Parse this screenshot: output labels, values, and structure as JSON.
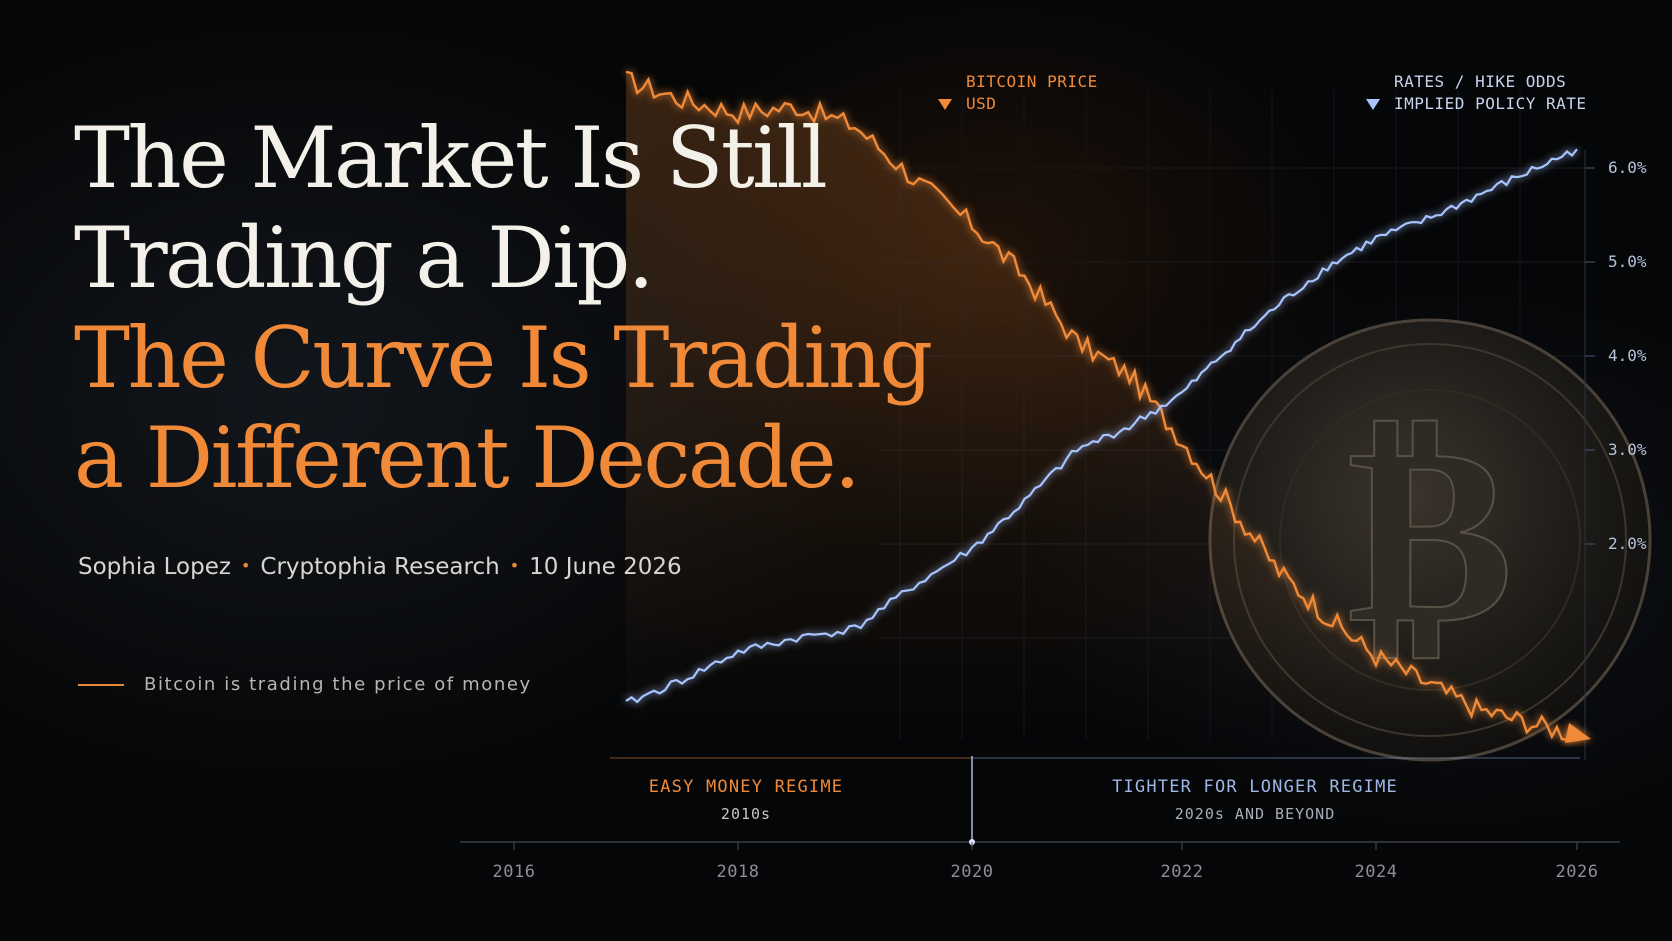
{
  "headline": {
    "line1": "The Market Is Still",
    "line2": "Trading a Dip.",
    "line3": "The Curve Is Trading",
    "line4": "a Different Decade."
  },
  "byline": {
    "author": "Sophia Lopez",
    "org": "Cryptophia Research",
    "date": "10 June 2026",
    "separator": "•"
  },
  "tagline": "Bitcoin is trading the price of money",
  "colors": {
    "bitcoin": "#f08a38",
    "rates": "#a8c4ff",
    "background": "#050607"
  },
  "chart_data": {
    "type": "line",
    "title": "",
    "xlabel": "",
    "ylabel": "",
    "x_ticks": [
      "2016",
      "2018",
      "2020",
      "2022",
      "2024",
      "2026"
    ],
    "xlim": [
      2016,
      2026
    ],
    "y_right": {
      "ticks": [
        "6.0%",
        "5.0%",
        "4.0%",
        "3.0%",
        "2.0%"
      ],
      "ylim": [
        0,
        6
      ]
    },
    "legend": [
      {
        "name": "BITCOIN PRICE",
        "unit": "USD",
        "color": "#f08a38",
        "placement": "top-center"
      },
      {
        "name": "RATES / HIKE ODDS",
        "unit": "IMPLIED POLICY RATE",
        "color": "#a8c4ff",
        "placement": "top-right"
      }
    ],
    "regimes": [
      {
        "name": "EASY MONEY REGIME",
        "period": "2010s"
      },
      {
        "name": "TIGHTER FOR LONGER REGIME",
        "period": "2020s AND BEYOND"
      }
    ],
    "regime_boundary_x": 2020,
    "series": [
      {
        "name": "RATES / HIKE ODDS",
        "axis": "right",
        "x": [
          2017.0,
          2017.5,
          2018.0,
          2018.5,
          2019.0,
          2019.5,
          2020.0,
          2020.5,
          2021.0,
          2021.5,
          2022.0,
          2022.5,
          2023.0,
          2023.5,
          2024.0,
          2024.5,
          2025.0,
          2025.5,
          2026.0
        ],
        "values": [
          0.3,
          0.55,
          0.85,
          1.0,
          1.1,
          1.55,
          1.95,
          2.45,
          3.0,
          3.25,
          3.6,
          4.1,
          4.55,
          4.95,
          5.25,
          5.45,
          5.7,
          5.95,
          6.2
        ]
      },
      {
        "name": "BITCOIN PRICE",
        "axis": "left-unlabeled",
        "x": [
          2017.0,
          2017.5,
          2018.0,
          2018.5,
          2019.0,
          2019.5,
          2020.0,
          2020.5,
          2021.0,
          2021.5,
          2022.0,
          2022.5,
          2023.0,
          2023.5,
          2024.0,
          2024.5,
          2025.0,
          2025.5,
          2026.0
        ],
        "values": [
          100,
          97,
          95,
          96,
          93,
          85,
          78,
          70,
          60,
          55,
          45,
          35,
          25,
          18,
          12,
          8,
          4,
          2,
          0
        ]
      }
    ]
  }
}
